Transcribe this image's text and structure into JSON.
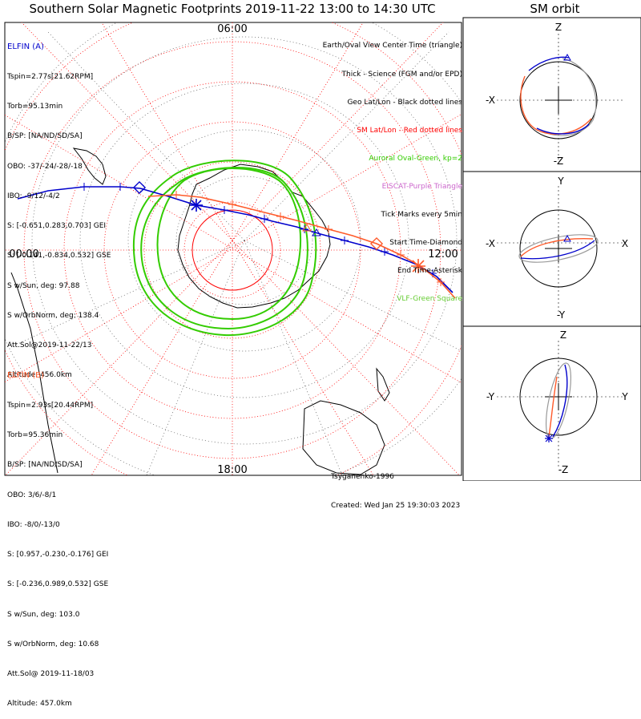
{
  "title": "Southern Solar Magnetic Footprints 2019-11-22 13:00 to 14:30 UTC",
  "orbit_title": "SM orbit",
  "map": {
    "mlt_labels": {
      "top": "06:00",
      "left": "00:00",
      "right": "12:00",
      "bottom": "18:00"
    }
  },
  "elfin_a": {
    "name": "ELFIN (A)",
    "color": "#0000cc",
    "lines": [
      "Tspin=2.77s[21.62RPM]",
      "Torb=95.13min",
      "B/SP: [NA/ND/SD/SA]",
      "OBO: -37/-24/-28/-18",
      "IBO: -9/12/-4/2",
      "S: [-0.651,0.283,0.703] GEI",
      "S: [-0.141,-0.834,0.532] GSE",
      "S w/Sun, deg: 97.88",
      "S w/OrbNorm, deg: 138.4",
      "Att.Sol@2019-11-22/13",
      "Altitude: 456.0km"
    ]
  },
  "elfin_b": {
    "name": "ELFIN (B)",
    "color": "#ff5a2a",
    "lines": [
      "Tspin=2.93s[20.44RPM]",
      "Torb=95.36min",
      "B/SP: [NA/ND/SD/SA]",
      "OBO: 3/6/-8/1",
      "IBO: -8/0/-13/0",
      "S: [0.957,-0.230,-0.176] GEI",
      "S: [-0.236,0.989,0.532] GSE",
      "S w/Sun, deg: 103.0",
      "S w/OrbNorm, deg: 10.68",
      "Att.Sol@ 2019-11-18/03",
      "Altitude: 457.0km"
    ]
  },
  "legend": [
    {
      "text": "Earth/Oval View Center Time (triangle)",
      "color": "#000000"
    },
    {
      "text": "Thick - Science (FGM and/or EPD)",
      "color": "#000000"
    },
    {
      "text": "Geo Lat/Lon - Black dotted lines",
      "color": "#000000"
    },
    {
      "text": "SM Lat/Lon - Red dotted lines",
      "color": "#ff0000"
    },
    {
      "text": "Auroral Oval-Green, kp=2",
      "color": "#33cc00"
    },
    {
      "text": "EISCAT-Purple Triangle",
      "color": "#cc66cc"
    },
    {
      "text": "Tick Marks every 5min",
      "color": "#000000"
    },
    {
      "text": "Start Time-Diamond",
      "color": "#000000"
    },
    {
      "text": "End Time-Asterisk",
      "color": "#000000"
    },
    {
      "text": "VLF-Green Square",
      "color": "#66cc33"
    }
  ],
  "footer": {
    "author": "Tsyganenko-1996",
    "created": "Created: Wed Jan 25 19:30:03 2023"
  },
  "orbit_panels": [
    {
      "top": "Z",
      "bottom": "-Z",
      "left": "-X",
      "right": ""
    },
    {
      "top": "Y",
      "bottom": "-Y",
      "left": "-X",
      "right": "X"
    },
    {
      "top": "Z",
      "bottom": "-Z",
      "left": "-Y",
      "right": "Y"
    }
  ],
  "colors": {
    "elfin_a": "#0000cc",
    "elfin_b": "#ff5a2a",
    "oval": "#33cc00",
    "grid_sm": "#ff0000"
  }
}
